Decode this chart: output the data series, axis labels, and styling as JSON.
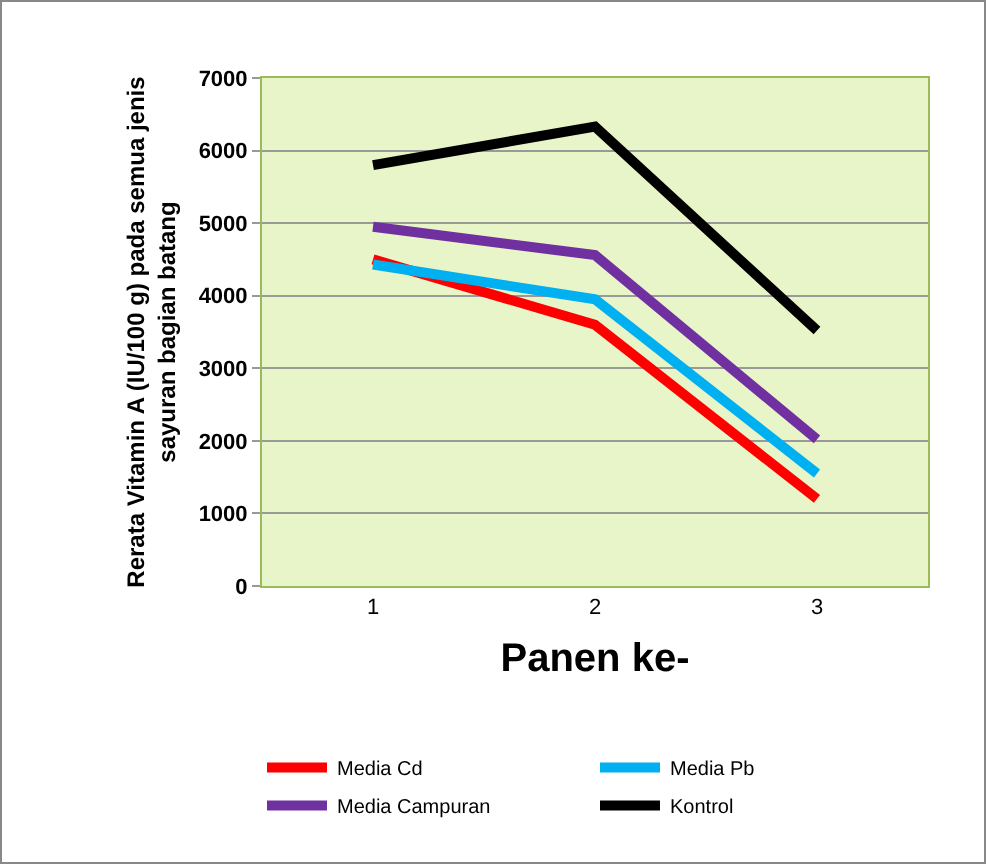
{
  "chart_data": {
    "type": "line",
    "xlabel": "Panen ke-",
    "ylabel": "Rerata Vitamin A (IU/100 g) pada semua jenis sayuran bagian batang",
    "categories": [
      "1",
      "2",
      "3"
    ],
    "series": [
      {
        "name": "Media Cd",
        "color": "#ff0000",
        "values": [
          4500,
          3600,
          1200
        ]
      },
      {
        "name": "Media Pb",
        "color": "#00b0f0",
        "values": [
          4430,
          3950,
          1550
        ]
      },
      {
        "name": "Media Campuran",
        "color": "#7030a0",
        "values": [
          4950,
          4560,
          2020
        ]
      },
      {
        "name": "Kontrol",
        "color": "#000000",
        "values": [
          5800,
          6330,
          3520
        ]
      }
    ],
    "ylim": [
      0,
      7000
    ],
    "yticks": [
      0,
      1000,
      2000,
      3000,
      4000,
      5000,
      6000,
      7000
    ],
    "grid": "y",
    "legend": "bottom",
    "marker": "none",
    "line_style": "solid"
  }
}
